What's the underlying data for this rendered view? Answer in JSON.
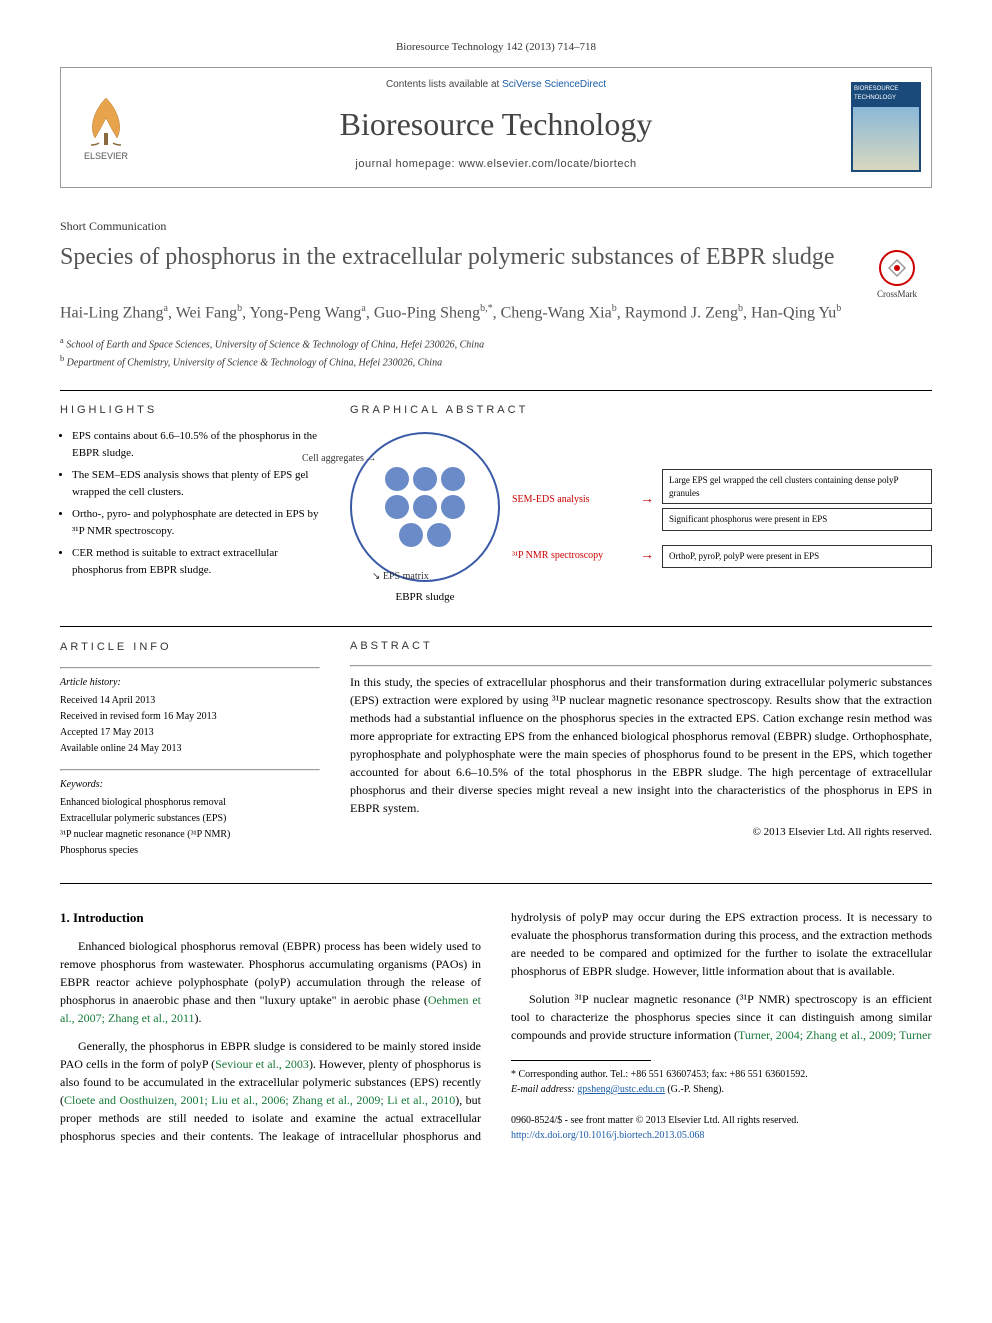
{
  "citation": "Bioresource Technology 142 (2013) 714–718",
  "masthead": {
    "contents_prefix": "Contents lists available at ",
    "contents_link": "SciVerse ScienceDirect",
    "journal": "Bioresource Technology",
    "homepage_prefix": "journal homepage: ",
    "homepage": "www.elsevier.com/locate/biortech",
    "publisher": "ELSEVIER",
    "cover_title": "BIORESOURCE TECHNOLOGY"
  },
  "article_type": "Short Communication",
  "title": "Species of phosphorus in the extracellular polymeric substances of EBPR sludge",
  "crossmark": "CrossMark",
  "authors_html": "Hai-Ling Zhang<sup>a</sup>, Wei Fang<sup>b</sup>, Yong-Peng Wang<sup>a</sup>, Guo-Ping Sheng<sup>b,*</sup>, Cheng-Wang Xia<sup>b</sup>, Raymond J. Zeng<sup>b</sup>, Han-Qing Yu<sup>b</sup>",
  "affiliations": [
    "a School of Earth and Space Sciences, University of Science & Technology of China, Hefei 230026, China",
    "b Department of Chemistry, University of Science & Technology of China, Hefei 230026, China"
  ],
  "labels": {
    "highlights": "HIGHLIGHTS",
    "graphical": "GRAPHICAL ABSTRACT",
    "article_info": "ARTICLE INFO",
    "abstract": "ABSTRACT"
  },
  "highlights": [
    "EPS contains about 6.6–10.5% of the phosphorus in the EBPR sludge.",
    "The SEM–EDS analysis shows that plenty of EPS gel wrapped the cell clusters.",
    "Ortho-, pyro- and polyphosphate are detected in EPS by ³¹P NMR spectroscopy.",
    "CER method is suitable to extract extracellular phosphorus from EBPR sludge."
  ],
  "graphical_abstract": {
    "cell_label": "Cell aggregates",
    "eps_label": "EPS matrix",
    "ebpr_label": "EBPR sludge",
    "circle_color": "#3a5aa8",
    "cell_color": "#6a8ac8",
    "method_color": "#c00",
    "rows": [
      {
        "method": "SEM-EDS analysis",
        "results": [
          "Large EPS gel wrapped the cell clusters containing dense polyP granules",
          "Significant phosphorus were present in EPS"
        ]
      },
      {
        "method": "³¹P NMR spectroscopy",
        "results": [
          "OrthoP, pyroP, polyP were present in EPS"
        ]
      }
    ]
  },
  "article_info": {
    "history_heading": "Article history:",
    "history": [
      "Received 14 April 2013",
      "Received in revised form 16 May 2013",
      "Accepted 17 May 2013",
      "Available online 24 May 2013"
    ],
    "keywords_heading": "Keywords:",
    "keywords": [
      "Enhanced biological phosphorus removal",
      "Extracellular polymeric substances (EPS)",
      "³¹P nuclear magnetic resonance (³¹P NMR)",
      "Phosphorus species"
    ]
  },
  "abstract": "In this study, the species of extracellular phosphorus and their transformation during extracellular polymeric substances (EPS) extraction were explored by using ³¹P nuclear magnetic resonance spectroscopy. Results show that the extraction methods had a substantial influence on the phosphorus species in the extracted EPS. Cation exchange resin method was more appropriate for extracting EPS from the enhanced biological phosphorus removal (EBPR) sludge. Orthophosphate, pyrophosphate and polyphosphate were the main species of phosphorus found to be present in the EPS, which together accounted for about 6.6–10.5% of the total phosphorus in the EBPR sludge. The high percentage of extracellular phosphorus and their diverse species might reveal a new insight into the characteristics of the phosphorus in EPS in EBPR system.",
  "abstract_copyright": "© 2013 Elsevier Ltd. All rights reserved.",
  "body": {
    "heading": "1. Introduction",
    "p1_a": "Enhanced biological phosphorus removal (EBPR) process has been widely used to remove phosphorus from wastewater. Phosphorus accumulating organisms (PAOs) in EBPR reactor achieve polyphosphate (polyP) accumulation through the release of phosphorus in anaerobic phase and then \"luxury uptake\" in aerobic phase (",
    "p1_cite": "Oehmen et al., 2007; Zhang et al., 2011",
    "p1_b": ").",
    "p2_a": "Generally, the phosphorus in EBPR sludge is considered to be mainly stored inside PAO cells in the form of polyP (",
    "p2_cite": "Seviour et al., 2003",
    "p2_b": "). However, plenty of phosphorus is also found to be accumulated in the extracellular polymeric substances (EPS) recently (",
    "p2_cite2": "Cloete and Oosthuizen, 2001; Liu et al., 2006; Zhang et al., 2009; Li et al., 2010",
    "p2_c": "), but proper methods are still needed to isolate and examine the actual extracellular phosphorus species and their contents. The leakage of intracellular phosphorus and hydrolysis of polyP may occur during the EPS extraction process. It is necessary to evaluate the phosphorus transformation during this process, and the extraction methods are needed to be compared and optimized for the further to isolate the extracellular phosphorus of EBPR sludge. However, little information about that is available.",
    "p3_a": "Solution ³¹P nuclear magnetic resonance (³¹P NMR) spectroscopy is an efficient tool to characterize the phosphorus species since it can distinguish among similar compounds and provide structure information (",
    "p3_cite": "Turner, 2004; Zhang et al., 2009; Turner"
  },
  "footnote": {
    "corr": "* Corresponding author. Tel.: +86 551 63607453; fax: +86 551 63601592.",
    "email_label": "E-mail address: ",
    "email": "gpsheng@ustc.edu.cn",
    "email_suffix": " (G.-P. Sheng)."
  },
  "footer": {
    "issn": "0960-8524/$ - see front matter © 2013 Elsevier Ltd. All rights reserved.",
    "doi": "http://dx.doi.org/10.1016/j.biortech.2013.05.068"
  }
}
